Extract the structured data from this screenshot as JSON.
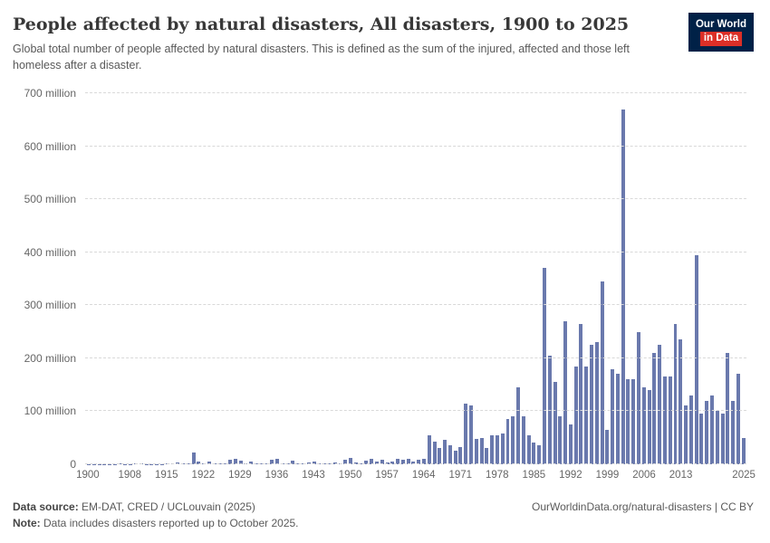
{
  "header": {
    "title": "People affected by natural disasters, All disasters, 1900 to 2025",
    "subtitle": "Global total number of people affected by natural disasters. This is defined as the sum of the injured, affected and those left homeless after a disaster."
  },
  "logo": {
    "line1": "Our World",
    "line2": "in Data",
    "bg_color": "#002147",
    "accent_color": "#dc2f27"
  },
  "chart_data": {
    "type": "bar",
    "title": "People affected by natural disasters, All disasters, 1900 to 2025",
    "xlabel": "",
    "ylabel": "",
    "unit": "million people",
    "ylim": [
      0,
      700
    ],
    "grid": "dashed horizontal",
    "bar_color": "#6a79ad",
    "y_tick_values": [
      0,
      100,
      200,
      300,
      400,
      500,
      600,
      700
    ],
    "y_tick_labels": [
      "0",
      "100 million",
      "200 million",
      "300 million",
      "400 million",
      "500 million",
      "600 million",
      "700 million"
    ],
    "x_tick_years": [
      1900,
      1908,
      1915,
      1922,
      1929,
      1936,
      1943,
      1950,
      1957,
      1964,
      1971,
      1978,
      1985,
      1992,
      1999,
      2006,
      2013,
      2025
    ],
    "years": [
      1900,
      1901,
      1902,
      1903,
      1904,
      1905,
      1906,
      1907,
      1908,
      1909,
      1910,
      1911,
      1912,
      1913,
      1914,
      1915,
      1916,
      1917,
      1918,
      1919,
      1920,
      1921,
      1922,
      1923,
      1924,
      1925,
      1926,
      1927,
      1928,
      1929,
      1930,
      1931,
      1932,
      1933,
      1934,
      1935,
      1936,
      1937,
      1938,
      1939,
      1940,
      1941,
      1942,
      1943,
      1944,
      1945,
      1946,
      1947,
      1948,
      1949,
      1950,
      1951,
      1952,
      1953,
      1954,
      1955,
      1956,
      1957,
      1958,
      1959,
      1960,
      1961,
      1962,
      1963,
      1964,
      1965,
      1966,
      1967,
      1968,
      1969,
      1970,
      1971,
      1972,
      1973,
      1974,
      1975,
      1976,
      1977,
      1978,
      1979,
      1980,
      1981,
      1982,
      1983,
      1984,
      1985,
      1986,
      1987,
      1988,
      1989,
      1990,
      1991,
      1992,
      1993,
      1994,
      1995,
      1996,
      1997,
      1998,
      1999,
      2000,
      2001,
      2002,
      2003,
      2004,
      2005,
      2006,
      2007,
      2008,
      2009,
      2010,
      2011,
      2012,
      2013,
      2014,
      2015,
      2016,
      2017,
      2018,
      2019,
      2020,
      2021,
      2022,
      2023,
      2024,
      2025
    ],
    "values_millions": [
      0.3,
      0.2,
      0.2,
      0.3,
      0.2,
      0.3,
      1,
      0.5,
      0.5,
      1,
      1,
      0.5,
      0.5,
      0.2,
      0.5,
      2,
      1,
      3,
      1,
      1,
      22,
      5,
      1,
      4,
      1,
      1,
      1,
      8,
      10,
      6,
      2,
      5,
      1,
      1,
      2,
      8,
      10,
      2,
      2,
      6,
      1,
      2,
      3,
      5,
      1,
      2,
      2,
      3,
      2,
      8,
      12,
      3,
      2,
      6,
      10,
      4,
      8,
      3,
      5,
      10,
      8,
      10,
      5,
      8,
      10,
      55,
      42,
      30,
      45,
      35,
      25,
      32,
      115,
      110,
      48,
      50,
      30,
      55,
      55,
      58,
      85,
      90,
      145,
      90,
      55,
      40,
      35,
      370,
      205,
      155,
      90,
      270,
      75,
      185,
      265,
      185,
      225,
      230,
      345,
      65,
      180,
      170,
      670,
      160,
      160,
      250,
      145,
      140,
      210,
      225,
      165,
      165,
      265,
      235,
      110,
      130,
      395,
      95,
      120,
      130,
      100,
      95,
      210,
      120,
      170,
      50
    ]
  },
  "footer": {
    "datasource_label": "Data source:",
    "datasource_value": " EM-DAT, CRED / UCLouvain (2025)",
    "note_label": "Note:",
    "note_value": " Data includes disasters reported up to October 2025.",
    "link": "OurWorldinData.org/natural-disasters | CC BY"
  }
}
